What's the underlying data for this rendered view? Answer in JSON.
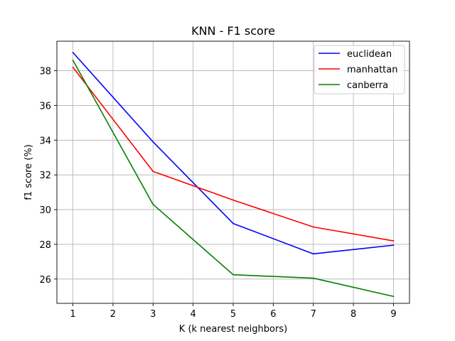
{
  "chart_data": {
    "type": "line",
    "title": "KNN - F1 score",
    "xlabel": "K (k nearest neighbors)",
    "ylabel": "f1 score (%)",
    "xlim": [
      0.6,
      9.4
    ],
    "ylim": [
      24.6,
      39.7
    ],
    "grid": true,
    "legend_position": "top-right",
    "x_ticks": [
      1,
      2,
      3,
      4,
      5,
      6,
      7,
      8,
      9
    ],
    "y_ticks": [
      26,
      28,
      30,
      32,
      34,
      36,
      38
    ],
    "x": [
      1,
      3,
      5,
      7,
      9
    ],
    "series": [
      {
        "name": "euclidean",
        "color": "#0000ff",
        "values": [
          39.05,
          33.9,
          29.2,
          27.45,
          27.95
        ]
      },
      {
        "name": "manhattan",
        "color": "#ff0000",
        "values": [
          38.2,
          32.2,
          30.55,
          29.0,
          28.2
        ]
      },
      {
        "name": "canberra",
        "color": "#008000",
        "values": [
          38.6,
          30.3,
          26.25,
          26.05,
          25.0
        ]
      }
    ]
  }
}
